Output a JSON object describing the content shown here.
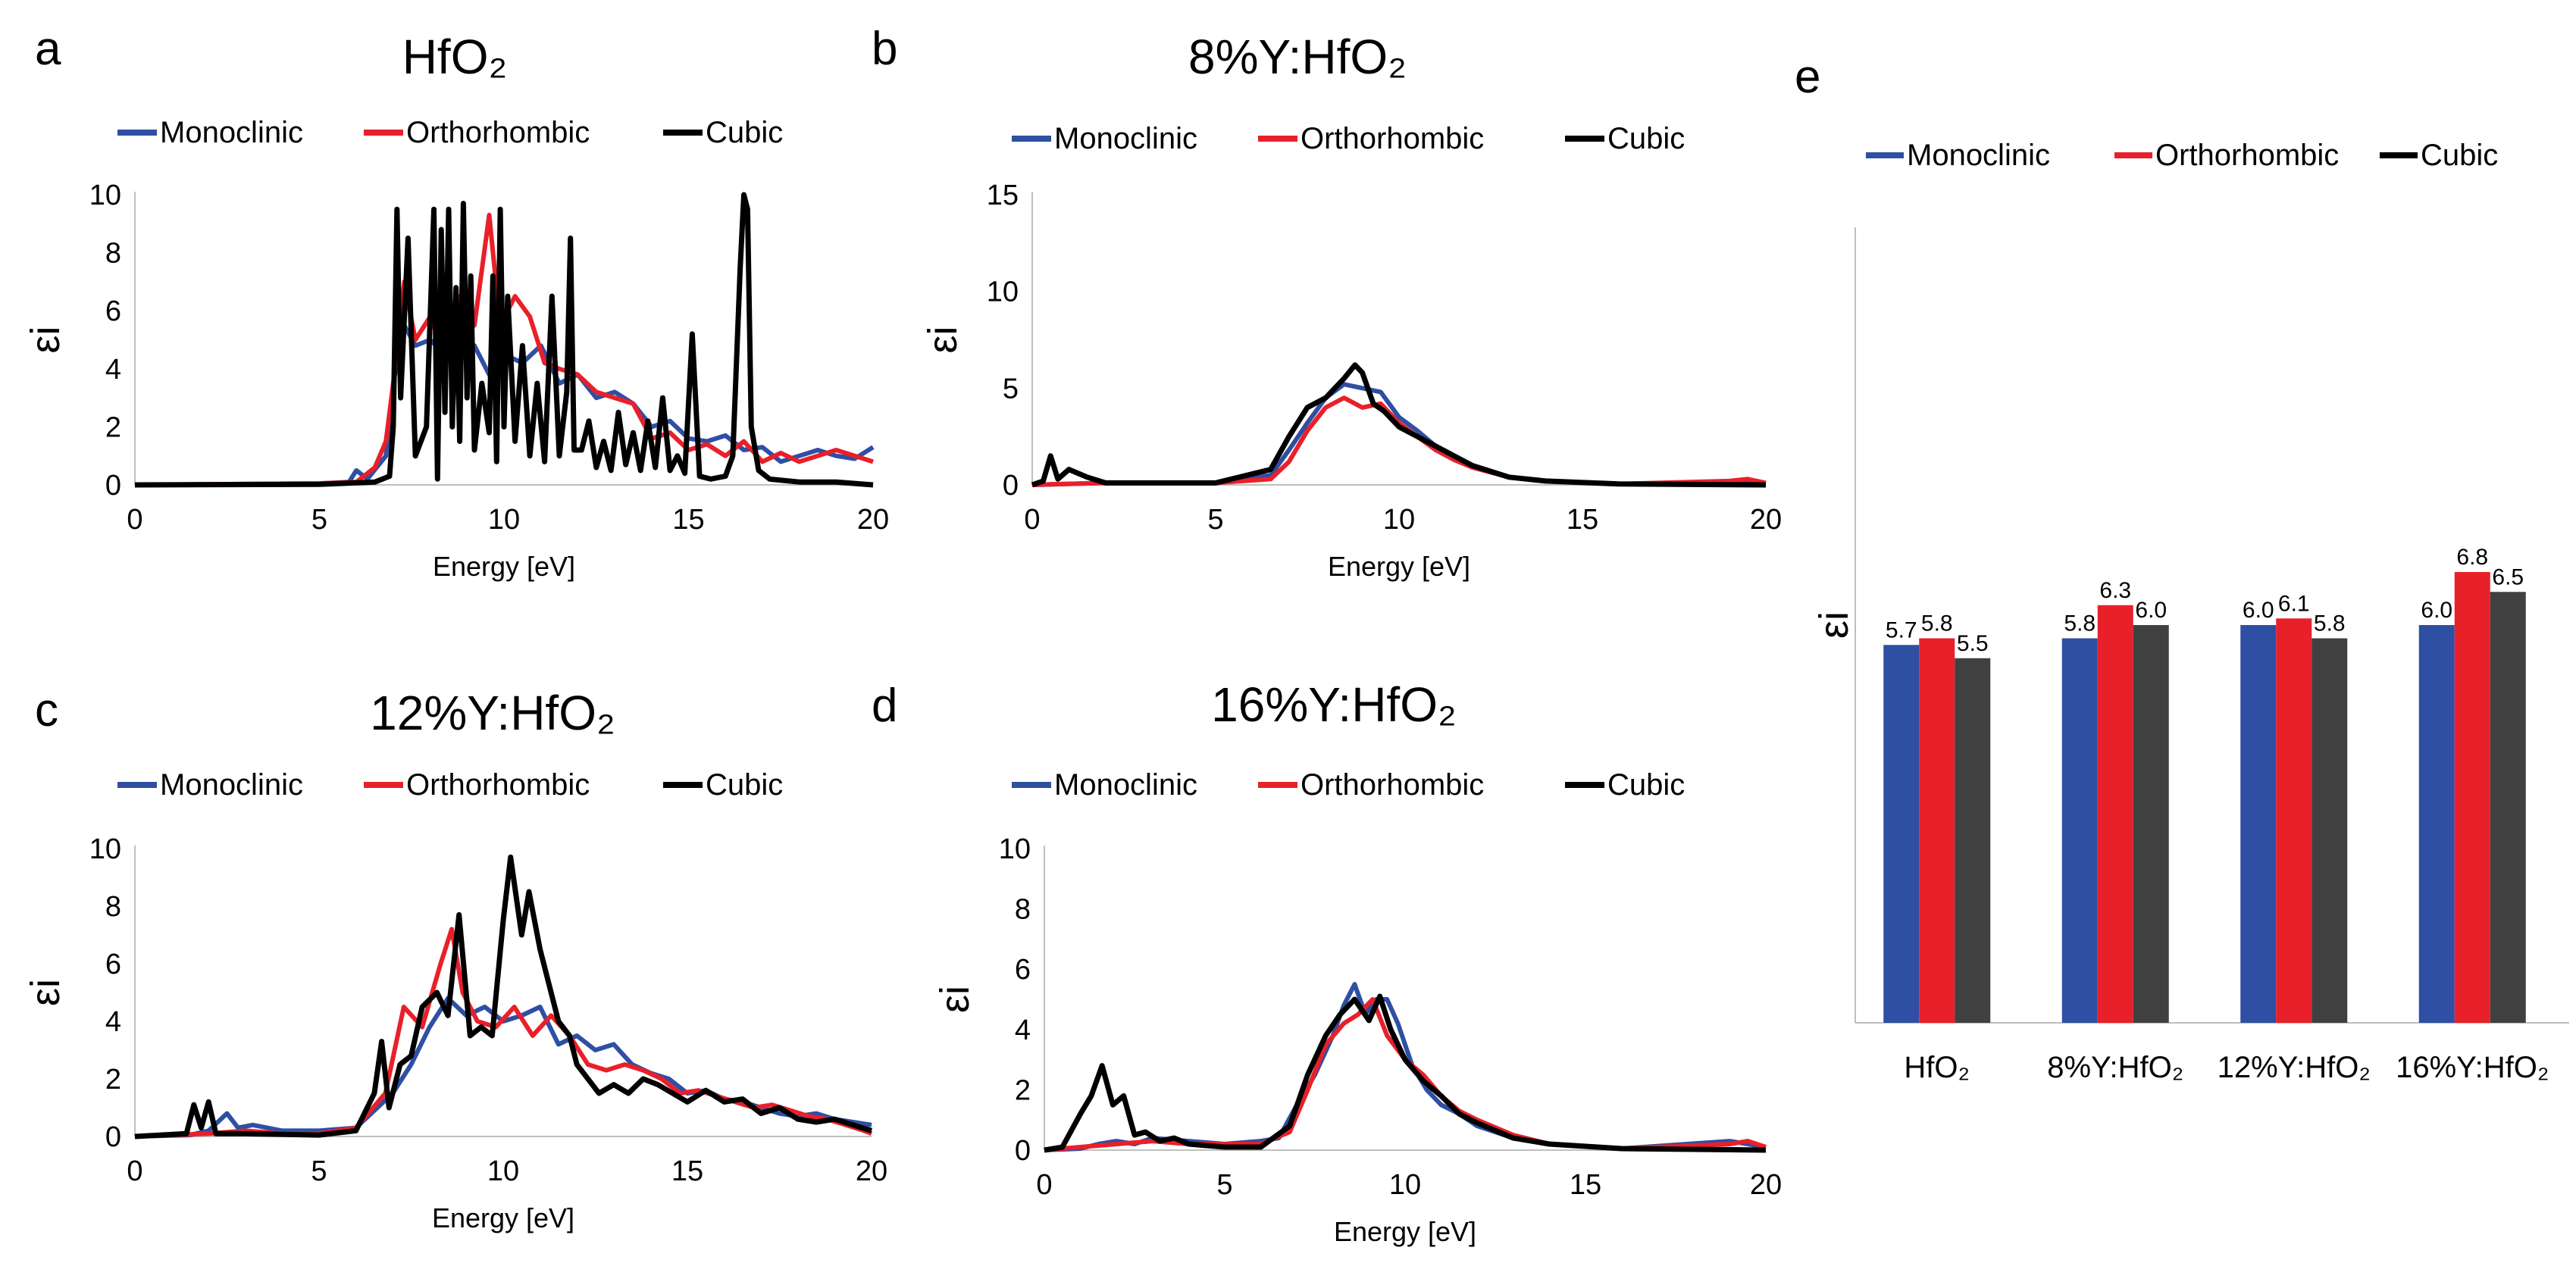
{
  "colors": {
    "monoclinic": "#2e4fa3",
    "orthorhombic": "#e8202a",
    "cubic": "#000000",
    "cubic_bar": "#404040"
  },
  "legend": {
    "monoclinic": "Monoclinic",
    "orthorhombic": "Orthorhombic",
    "cubic": "Cubic"
  },
  "chart_data": [
    {
      "panel": "a",
      "type": "line",
      "title": "HfO₂",
      "xlabel": "Energy [eV]",
      "ylabel": "εi",
      "xlim": [
        0,
        20
      ],
      "ylim": [
        0,
        10
      ],
      "xticks": [
        0,
        5,
        10,
        15,
        20
      ],
      "yticks": [
        0,
        2,
        4,
        6,
        8,
        10
      ],
      "series": [
        {
          "name": "Monoclinic",
          "x": [
            0,
            5,
            5.8,
            6.0,
            6.3,
            6.8,
            7.0,
            7.3,
            7.6,
            8.0,
            8.4,
            8.8,
            9.2,
            9.6,
            10.0,
            10.5,
            11.0,
            11.5,
            12.0,
            12.5,
            13.0,
            13.5,
            14.0,
            14.5,
            15.0,
            15.5,
            16.0,
            16.5,
            17.0,
            17.5,
            18.0,
            18.5,
            19.0,
            19.5,
            20.0
          ],
          "y": [
            0,
            0.05,
            0.1,
            0.5,
            0.2,
            1.0,
            3.5,
            5.5,
            4.8,
            5.0,
            4.5,
            5.2,
            4.8,
            3.8,
            4.5,
            4.2,
            4.8,
            3.5,
            3.8,
            3.0,
            3.2,
            2.8,
            2.0,
            2.2,
            1.6,
            1.5,
            1.7,
            1.2,
            1.3,
            0.8,
            1.0,
            1.2,
            1.0,
            0.9,
            1.3
          ]
        },
        {
          "name": "Orthorhombic",
          "x": [
            0,
            5,
            6.0,
            6.5,
            6.8,
            7.0,
            7.3,
            7.6,
            8.0,
            8.4,
            8.8,
            9.2,
            9.6,
            9.9,
            10.3,
            10.7,
            11.1,
            11.5,
            12.0,
            12.5,
            13.0,
            13.5,
            14.0,
            14.5,
            15.0,
            15.5,
            16.0,
            16.5,
            17.0,
            17.5,
            18.0,
            18.5,
            19.0,
            19.5,
            20.0
          ],
          "y": [
            0,
            0.05,
            0.1,
            0.6,
            1.5,
            3.5,
            7.0,
            5.0,
            5.8,
            4.5,
            6.5,
            5.5,
            9.3,
            5.5,
            6.5,
            5.8,
            4.2,
            4.0,
            3.8,
            3.2,
            3.0,
            2.8,
            1.6,
            1.8,
            1.2,
            1.4,
            1.0,
            1.5,
            0.8,
            1.1,
            0.8,
            1.0,
            1.2,
            1.0,
            0.8
          ]
        },
        {
          "name": "Cubic",
          "x": [
            0,
            5,
            6.5,
            6.9,
            7.0,
            7.1,
            7.2,
            7.4,
            7.6,
            7.9,
            8.1,
            8.2,
            8.3,
            8.4,
            8.5,
            8.6,
            8.7,
            8.8,
            8.9,
            9.0,
            9.1,
            9.2,
            9.4,
            9.6,
            9.7,
            9.8,
            9.9,
            10.0,
            10.1,
            10.3,
            10.5,
            10.7,
            10.9,
            11.1,
            11.3,
            11.5,
            11.7,
            11.8,
            11.9,
            12.1,
            12.3,
            12.5,
            12.7,
            12.9,
            13.1,
            13.3,
            13.5,
            13.7,
            13.9,
            14.1,
            14.3,
            14.5,
            14.7,
            14.9,
            15.1,
            15.3,
            15.6,
            16.0,
            16.2,
            16.4,
            16.5,
            16.6,
            16.7,
            16.9,
            17.2,
            18.0,
            19.0,
            19.5,
            20.0
          ],
          "y": [
            0,
            0.02,
            0.1,
            0.3,
            2.0,
            9.5,
            3.0,
            8.5,
            1.0,
            2.0,
            9.5,
            0.2,
            8.8,
            2.5,
            9.5,
            2.0,
            6.8,
            1.5,
            9.7,
            3.0,
            7.2,
            1.2,
            3.5,
            1.8,
            7.2,
            0.8,
            9.5,
            2.0,
            6.5,
            1.5,
            4.8,
            1.0,
            3.5,
            0.8,
            6.5,
            1.0,
            3.2,
            8.5,
            1.2,
            1.2,
            2.2,
            0.6,
            1.5,
            0.5,
            2.5,
            0.7,
            1.8,
            0.5,
            2.2,
            0.6,
            3.0,
            0.5,
            1.0,
            0.4,
            5.2,
            0.3,
            0.2,
            0.3,
            1.0,
            7.5,
            10.0,
            9.5,
            2.0,
            0.5,
            0.2,
            0.1,
            0.1,
            0.05,
            0.0
          ]
        }
      ]
    },
    {
      "panel": "b",
      "type": "line",
      "title": "8%Y:HfO₂",
      "xlabel": "Energy [eV]",
      "ylabel": "εi",
      "xlim": [
        0,
        20
      ],
      "ylim": [
        0,
        15
      ],
      "xticks": [
        0,
        5,
        10,
        15,
        20
      ],
      "yticks": [
        0,
        5,
        10,
        15
      ],
      "series": [
        {
          "name": "Monoclinic",
          "x": [
            0,
            2,
            5,
            6.5,
            7.0,
            7.5,
            8.0,
            8.5,
            9.0,
            9.5,
            10.0,
            10.5,
            11.0,
            11.5,
            12.0,
            13.0,
            14.0,
            16.0,
            19.0,
            20.0
          ],
          "y": [
            0,
            0.1,
            0.1,
            0.5,
            1.8,
            3.2,
            4.5,
            5.2,
            5.0,
            4.8,
            3.5,
            2.8,
            2.0,
            1.5,
            1.0,
            0.4,
            0.2,
            0.05,
            0.1,
            0.1
          ]
        },
        {
          "name": "Orthorhombic",
          "x": [
            0,
            2,
            5,
            6.5,
            7.0,
            7.5,
            8.0,
            8.5,
            9.0,
            9.5,
            10.0,
            10.5,
            11.0,
            11.5,
            12.0,
            13.0,
            14.0,
            16.0,
            19.0,
            19.5,
            20.0
          ],
          "y": [
            0,
            0.1,
            0.1,
            0.3,
            1.2,
            2.8,
            4.0,
            4.5,
            4.0,
            4.2,
            3.2,
            2.5,
            1.8,
            1.3,
            0.9,
            0.4,
            0.2,
            0.05,
            0.2,
            0.3,
            0.1
          ]
        },
        {
          "name": "Cubic",
          "x": [
            0,
            0.3,
            0.5,
            0.7,
            1.0,
            1.5,
            2.0,
            5.0,
            6.5,
            7.0,
            7.5,
            8.0,
            8.5,
            8.8,
            9.0,
            9.3,
            9.6,
            10.0,
            10.5,
            11.0,
            11.5,
            12.0,
            13.0,
            14.0,
            16.0,
            20.0
          ],
          "y": [
            0,
            0.2,
            1.5,
            0.3,
            0.8,
            0.4,
            0.1,
            0.1,
            0.8,
            2.5,
            4.0,
            4.5,
            5.5,
            6.2,
            5.8,
            4.2,
            3.8,
            3.0,
            2.5,
            2.0,
            1.5,
            1.0,
            0.4,
            0.2,
            0.05,
            0.0
          ]
        }
      ]
    },
    {
      "panel": "c",
      "type": "line",
      "title": "12%Y:HfO₂",
      "xlabel": "Energy [eV]",
      "ylabel": "εi",
      "xlim": [
        0,
        20
      ],
      "ylim": [
        0,
        10
      ],
      "xticks": [
        0,
        5,
        10,
        15,
        20
      ],
      "yticks": [
        0,
        2,
        4,
        6,
        8,
        10
      ],
      "series": [
        {
          "name": "Monoclinic",
          "x": [
            0,
            1.5,
            2.0,
            2.5,
            2.8,
            3.2,
            4.0,
            5.0,
            6.0,
            7.0,
            7.5,
            8.0,
            8.5,
            9.0,
            9.5,
            10.0,
            10.5,
            11.0,
            11.5,
            12.0,
            12.5,
            13.0,
            13.5,
            14.0,
            14.5,
            15.0,
            15.5,
            16.0,
            16.5,
            17.0,
            17.5,
            18.0,
            18.5,
            19.0,
            19.5,
            20.0
          ],
          "y": [
            0,
            0.05,
            0.2,
            0.8,
            0.3,
            0.4,
            0.2,
            0.2,
            0.3,
            1.5,
            2.5,
            3.8,
            4.8,
            4.2,
            4.5,
            4.0,
            4.2,
            4.5,
            3.2,
            3.5,
            3.0,
            3.2,
            2.5,
            2.2,
            2.0,
            1.5,
            1.6,
            1.3,
            1.2,
            1.0,
            0.8,
            0.7,
            0.8,
            0.6,
            0.5,
            0.4
          ]
        },
        {
          "name": "Orthorhombic",
          "x": [
            0,
            2,
            3,
            4,
            5,
            6,
            6.8,
            7.3,
            7.8,
            8.3,
            8.6,
            8.9,
            9.3,
            9.8,
            10.3,
            10.8,
            11.3,
            11.8,
            12.3,
            12.8,
            13.3,
            13.8,
            14.3,
            14.8,
            15.3,
            15.8,
            16.3,
            16.8,
            17.3,
            17.8,
            18.3,
            18.8,
            19.3,
            19.8,
            20.0
          ],
          "y": [
            0,
            0.1,
            0.2,
            0.1,
            0.1,
            0.3,
            1.5,
            4.5,
            3.8,
            6.0,
            7.2,
            5.0,
            4.0,
            3.8,
            4.5,
            3.5,
            4.2,
            3.5,
            2.5,
            2.3,
            2.5,
            2.3,
            2.0,
            1.5,
            1.6,
            1.4,
            1.2,
            1.0,
            1.1,
            0.9,
            0.7,
            0.6,
            0.4,
            0.2,
            0.1
          ]
        },
        {
          "name": "Cubic",
          "x": [
            0,
            1.4,
            1.6,
            1.8,
            2.0,
            2.2,
            3.0,
            5.0,
            6.0,
            6.5,
            6.7,
            6.9,
            7.2,
            7.5,
            7.8,
            8.2,
            8.5,
            8.8,
            9.1,
            9.4,
            9.7,
            10.0,
            10.2,
            10.5,
            10.7,
            11.0,
            11.2,
            11.5,
            11.8,
            12.0,
            12.3,
            12.6,
            13.0,
            13.4,
            13.8,
            14.2,
            14.6,
            15.0,
            15.5,
            16.0,
            16.5,
            17.0,
            17.5,
            18.0,
            18.5,
            19.0,
            19.5,
            20.0
          ],
          "y": [
            0,
            0.1,
            1.1,
            0.3,
            1.2,
            0.1,
            0.1,
            0.05,
            0.2,
            1.5,
            3.3,
            1.0,
            2.5,
            2.8,
            4.5,
            5.0,
            4.2,
            7.7,
            3.5,
            3.8,
            3.5,
            7.5,
            9.7,
            7.0,
            8.5,
            6.5,
            5.5,
            4.0,
            3.5,
            2.5,
            2.0,
            1.5,
            1.8,
            1.5,
            2.0,
            1.8,
            1.5,
            1.2,
            1.6,
            1.2,
            1.3,
            0.8,
            1.0,
            0.6,
            0.5,
            0.6,
            0.4,
            0.2
          ]
        }
      ]
    },
    {
      "panel": "d",
      "type": "line",
      "title": "16%Y:HfO₂",
      "xlabel": "Energy [eV]",
      "ylabel": "εi",
      "xlim": [
        0,
        20
      ],
      "ylim": [
        0,
        10
      ],
      "xticks": [
        0,
        5,
        10,
        15,
        20
      ],
      "yticks": [
        0,
        2,
        4,
        6,
        8,
        10
      ],
      "series": [
        {
          "name": "Monoclinic",
          "x": [
            0,
            1.0,
            1.5,
            2.0,
            2.5,
            3.0,
            4.0,
            5.0,
            6.0,
            6.5,
            7.0,
            7.5,
            8.0,
            8.3,
            8.6,
            8.9,
            9.2,
            9.5,
            9.8,
            10.2,
            10.6,
            11.0,
            11.5,
            12.0,
            13.0,
            14.0,
            16.0,
            19.0,
            19.5,
            20.0
          ],
          "y": [
            0,
            0.05,
            0.2,
            0.3,
            0.2,
            0.4,
            0.3,
            0.2,
            0.3,
            0.4,
            1.5,
            2.5,
            3.8,
            4.8,
            5.5,
            4.5,
            5.0,
            5.0,
            4.2,
            2.8,
            2.0,
            1.5,
            1.2,
            0.8,
            0.4,
            0.2,
            0.05,
            0.3,
            0.2,
            0.1
          ]
        },
        {
          "name": "Orthorhombic",
          "x": [
            0,
            2,
            3,
            4,
            5,
            6,
            6.8,
            7.3,
            7.8,
            8.3,
            8.7,
            9.1,
            9.5,
            10.0,
            10.5,
            11.0,
            11.5,
            12.0,
            13.0,
            14.0,
            16.0,
            19.0,
            19.5,
            20.0
          ],
          "y": [
            0,
            0.2,
            0.3,
            0.2,
            0.2,
            0.2,
            0.6,
            2.0,
            3.5,
            4.2,
            4.5,
            5.0,
            3.8,
            3.0,
            2.5,
            1.8,
            1.3,
            1.0,
            0.5,
            0.2,
            0.05,
            0.2,
            0.3,
            0.1
          ]
        },
        {
          "name": "Cubic",
          "x": [
            0,
            0.5,
            1.0,
            1.3,
            1.6,
            1.9,
            2.2,
            2.5,
            2.8,
            3.2,
            3.6,
            4.0,
            5.0,
            6.0,
            6.8,
            7.3,
            7.8,
            8.2,
            8.6,
            9.0,
            9.3,
            9.6,
            10.0,
            10.5,
            11.0,
            11.5,
            12.0,
            13.0,
            14.0,
            16.0,
            20.0
          ],
          "y": [
            0,
            0.1,
            1.2,
            1.8,
            2.8,
            1.5,
            1.8,
            0.5,
            0.6,
            0.3,
            0.4,
            0.2,
            0.1,
            0.1,
            0.8,
            2.5,
            3.8,
            4.5,
            5.0,
            4.3,
            5.1,
            4.0,
            3.0,
            2.3,
            1.8,
            1.2,
            0.9,
            0.4,
            0.2,
            0.05,
            0.0
          ]
        }
      ]
    },
    {
      "panel": "e",
      "type": "bar",
      "title": "",
      "xlabel": "",
      "ylabel": "εi",
      "categories": [
        "HfO₂",
        "8%Y:HfO₂",
        "12%Y:HfO₂",
        "16%Y:HfO₂"
      ],
      "ylim": [
        0,
        12
      ],
      "series": [
        {
          "name": "Monoclinic",
          "values": [
            5.7,
            5.8,
            6.0,
            6.0
          ],
          "labels": [
            "5.7",
            "5.8",
            "6.0",
            "6.0"
          ]
        },
        {
          "name": "Orthorhombic",
          "values": [
            5.8,
            6.3,
            6.1,
            6.8
          ],
          "labels": [
            "5.8",
            "6.3",
            "6.1",
            "6.8"
          ]
        },
        {
          "name": "Cubic",
          "values": [
            5.5,
            6.0,
            5.8,
            6.5
          ],
          "labels": [
            "5.5",
            "6.0",
            "5.8",
            "6.5"
          ]
        }
      ]
    }
  ]
}
